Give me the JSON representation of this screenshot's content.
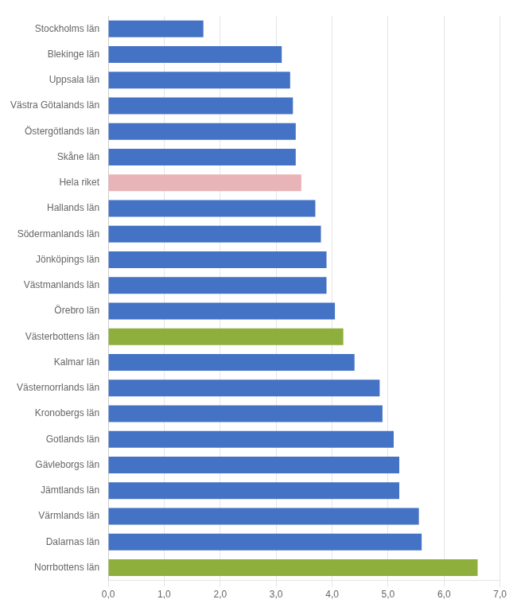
{
  "chart_data": {
    "type": "bar",
    "orientation": "horizontal",
    "categories": [
      "Stockholms län",
      "Blekinge län",
      "Uppsala län",
      "Västra Götalands län",
      "Östergötlands län",
      "Skåne län",
      "Hela riket",
      "Hallands län",
      "Södermanlands län",
      "Jönköpings län",
      "Västmanlands län",
      "Örebro län",
      "Västerbottens län",
      "Kalmar län",
      "Västernorrlands län",
      "Kronobergs län",
      "Gotlands län",
      "Gävleborgs län",
      "Jämtlands län",
      "Värmlands län",
      "Dalarnas län",
      "Norrbottens län"
    ],
    "values": [
      1.7,
      3.1,
      3.25,
      3.3,
      3.35,
      3.35,
      3.45,
      3.7,
      3.8,
      3.9,
      3.9,
      4.05,
      4.2,
      4.4,
      4.85,
      4.9,
      5.1,
      5.2,
      5.2,
      5.55,
      5.6,
      6.6
    ],
    "colors": [
      "#4472c4",
      "#4472c4",
      "#4472c4",
      "#4472c4",
      "#4472c4",
      "#4472c4",
      "#e8b4b8",
      "#4472c4",
      "#4472c4",
      "#4472c4",
      "#4472c4",
      "#4472c4",
      "#8faf3c",
      "#4472c4",
      "#4472c4",
      "#4472c4",
      "#4472c4",
      "#4472c4",
      "#4472c4",
      "#4472c4",
      "#4472c4",
      "#8faf3c"
    ],
    "xlim": [
      0,
      7.0
    ],
    "xticks": [
      {
        "value": 0.0,
        "label": "0,0"
      },
      {
        "value": 1.0,
        "label": "1,0"
      },
      {
        "value": 2.0,
        "label": "2,0"
      },
      {
        "value": 3.0,
        "label": "3,0"
      },
      {
        "value": 4.0,
        "label": "4,0"
      },
      {
        "value": 5.0,
        "label": "5,0"
      },
      {
        "value": 6.0,
        "label": "6,0"
      },
      {
        "value": 7.0,
        "label": "7,0"
      }
    ],
    "grid": true
  }
}
